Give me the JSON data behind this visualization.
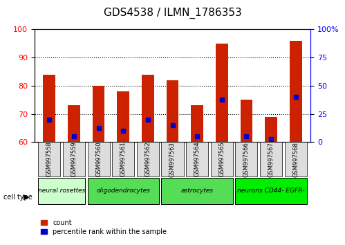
{
  "title": "GDS4538 / ILMN_1786353",
  "samples": [
    "GSM997558",
    "GSM997559",
    "GSM997560",
    "GSM997561",
    "GSM997562",
    "GSM997563",
    "GSM997564",
    "GSM997565",
    "GSM997566",
    "GSM997567",
    "GSM997568"
  ],
  "bar_values": [
    84,
    73,
    80,
    78,
    84,
    82,
    73,
    95,
    75,
    69,
    96
  ],
  "blue_values": [
    68,
    62,
    65,
    64,
    68,
    66,
    62,
    75,
    62,
    61,
    76
  ],
  "ylim_left": [
    60,
    100
  ],
  "ylim_right": [
    0,
    100
  ],
  "yticks_left": [
    60,
    70,
    80,
    90,
    100
  ],
  "yticks_right": [
    0,
    25,
    50,
    75,
    100
  ],
  "ytick_labels_right": [
    "0",
    "25",
    "50",
    "75",
    "100%"
  ],
  "bar_color": "#cc2200",
  "blue_color": "#0000cc",
  "cell_type_groups": [
    {
      "label": "neural rosettes",
      "start": 0,
      "end": 1,
      "color": "#ccffcc"
    },
    {
      "label": "oligodendrocytes",
      "start": 1,
      "end": 3,
      "color": "#33cc33"
    },
    {
      "label": "astrocytes",
      "start": 3,
      "end": 7,
      "color": "#33cc33"
    },
    {
      "label": "neurons CD44- EGFR-",
      "start": 7,
      "end": 10,
      "color": "#00ee00"
    }
  ],
  "cell_groups": [
    {
      "label": "neural rosettes",
      "cols": [
        0,
        1
      ],
      "color": "#ccffcc"
    },
    {
      "label": "oligodendrocytes",
      "cols": [
        2,
        3,
        4
      ],
      "color": "#55dd55"
    },
    {
      "label": "astrocytes",
      "cols": [
        5,
        6,
        7
      ],
      "color": "#55dd55"
    },
    {
      "label": "neurons CD44- EGFR-",
      "cols": [
        8,
        9,
        10
      ],
      "color": "#00ee00"
    }
  ],
  "legend_count_color": "#cc2200",
  "legend_pct_color": "#0000cc",
  "xlabel": "",
  "ylabel_left": "",
  "ylabel_right": "",
  "grid_dotted": true
}
